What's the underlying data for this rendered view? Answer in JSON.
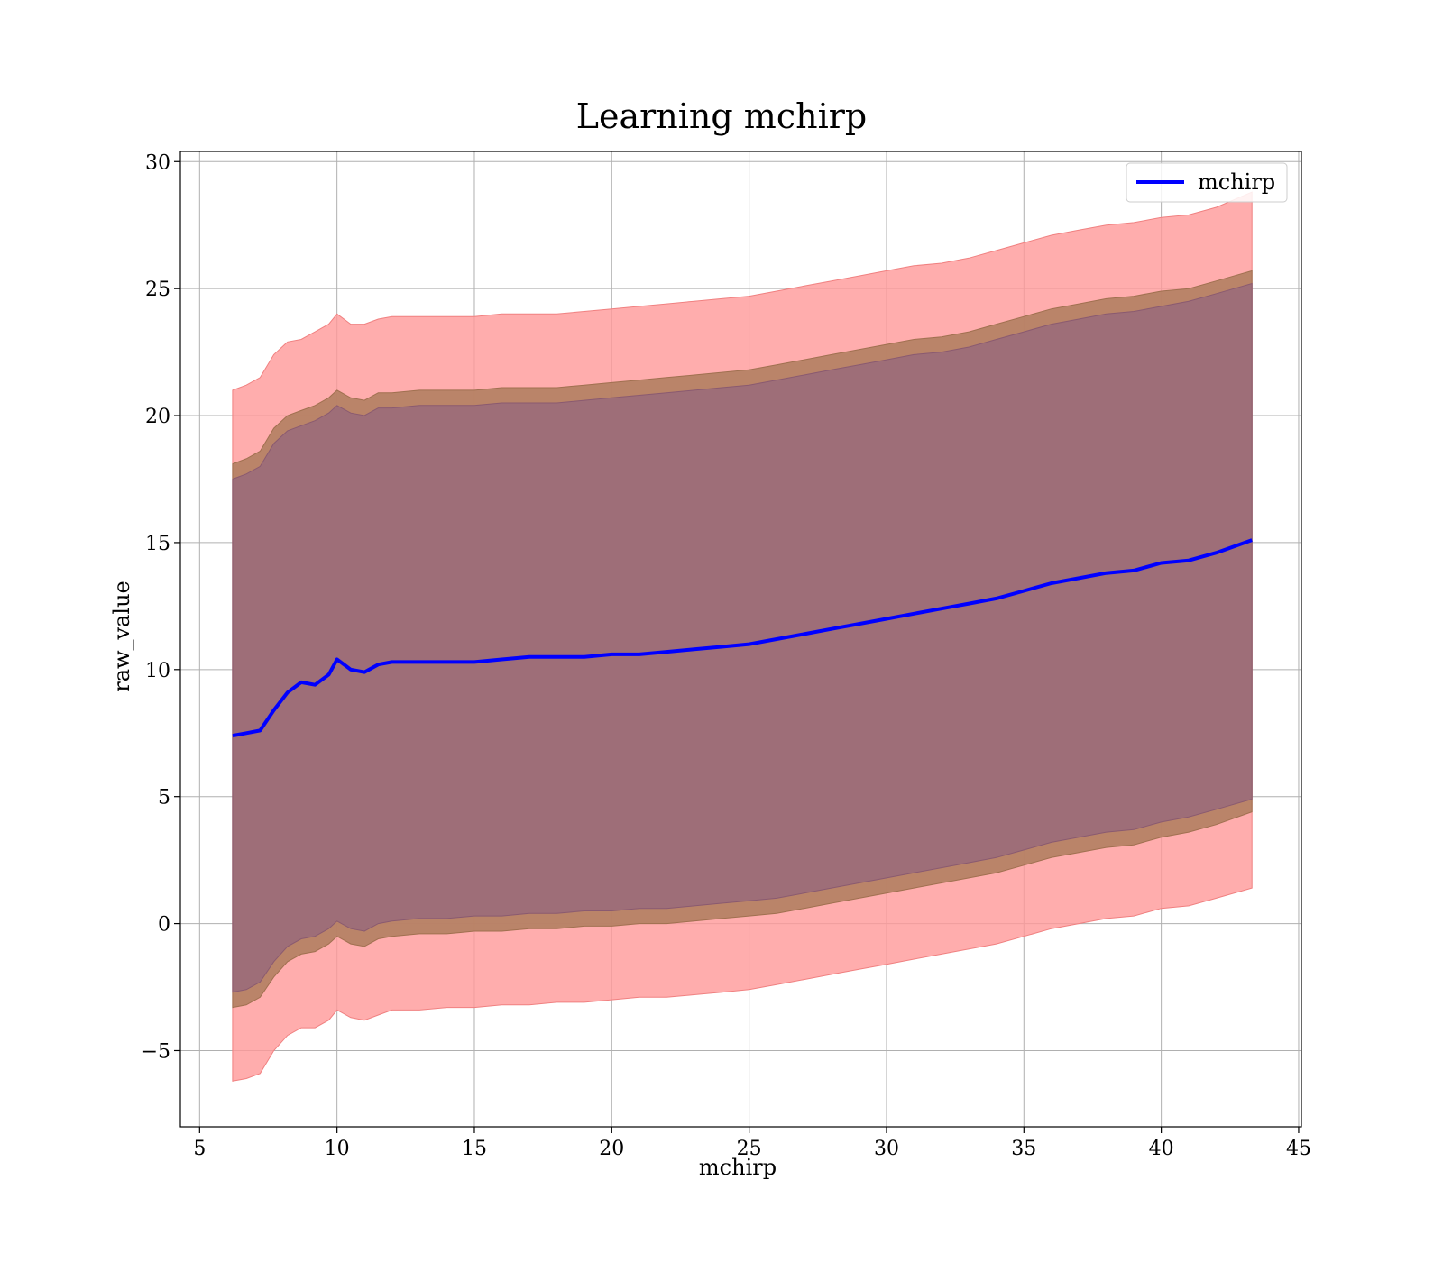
{
  "chart_data": {
    "type": "line",
    "title": "Learning mchirp",
    "xlabel": "mchirp",
    "ylabel": "raw_value",
    "xlim": [
      4.3,
      45.1
    ],
    "ylim": [
      -8.0,
      30.4
    ],
    "x_ticks": [
      5,
      10,
      15,
      20,
      25,
      30,
      35,
      40,
      45
    ],
    "y_ticks": [
      -5,
      0,
      5,
      10,
      15,
      20,
      25,
      30
    ],
    "x_tick_labels": [
      "5",
      "10",
      "15",
      "20",
      "25",
      "30",
      "35",
      "40",
      "45"
    ],
    "y_tick_labels": [
      "−5",
      "0",
      "5",
      "10",
      "15",
      "20",
      "25",
      "30"
    ],
    "grid": true,
    "legend_position": "top-right",
    "colors": {
      "line": "#0000ff",
      "outer_band": "#ff9999",
      "middle_band": "#b38062",
      "inner_band": "#9e6e78"
    },
    "series": [
      {
        "name": "mchirp",
        "x": [
          6.2,
          6.7,
          7.2,
          7.7,
          8.2,
          8.7,
          9.2,
          9.7,
          10.0,
          10.5,
          11.0,
          11.5,
          12.0,
          13,
          14,
          15,
          16,
          17,
          18,
          19,
          20,
          21,
          22,
          23,
          24,
          25,
          26,
          27,
          28,
          29,
          30,
          31,
          32,
          33,
          34,
          35,
          36,
          37,
          38,
          39,
          40,
          41,
          42,
          43.3
        ],
        "y": [
          7.4,
          7.5,
          7.6,
          8.4,
          9.1,
          9.5,
          9.4,
          9.8,
          10.4,
          10.0,
          9.9,
          10.2,
          10.3,
          10.3,
          10.3,
          10.3,
          10.4,
          10.5,
          10.5,
          10.5,
          10.6,
          10.6,
          10.7,
          10.8,
          10.9,
          11.0,
          11.2,
          11.4,
          11.6,
          11.8,
          12.0,
          12.2,
          12.4,
          12.6,
          12.8,
          13.1,
          13.4,
          13.6,
          13.8,
          13.9,
          14.2,
          14.3,
          14.6,
          15.1
        ]
      }
    ],
    "bands": {
      "outer": {
        "upper": [
          21.0,
          21.2,
          21.5,
          22.4,
          22.9,
          23.0,
          23.3,
          23.6,
          24.0,
          23.6,
          23.6,
          23.8,
          23.9,
          23.9,
          23.9,
          23.9,
          24.0,
          24.0,
          24.0,
          24.1,
          24.2,
          24.3,
          24.4,
          24.5,
          24.6,
          24.7,
          24.9,
          25.1,
          25.3,
          25.5,
          25.7,
          25.9,
          26.0,
          26.2,
          26.5,
          26.8,
          27.1,
          27.3,
          27.5,
          27.6,
          27.8,
          27.9,
          28.2,
          28.8
        ],
        "lower": [
          -6.2,
          -6.1,
          -5.9,
          -5.0,
          -4.4,
          -4.1,
          -4.1,
          -3.8,
          -3.4,
          -3.7,
          -3.8,
          -3.6,
          -3.4,
          -3.4,
          -3.3,
          -3.3,
          -3.2,
          -3.2,
          -3.1,
          -3.1,
          -3.0,
          -2.9,
          -2.9,
          -2.8,
          -2.7,
          -2.6,
          -2.4,
          -2.2,
          -2.0,
          -1.8,
          -1.6,
          -1.4,
          -1.2,
          -1.0,
          -0.8,
          -0.5,
          -0.2,
          0.0,
          0.2,
          0.3,
          0.6,
          0.7,
          1.0,
          1.4
        ]
      },
      "middle": {
        "upper": [
          18.1,
          18.3,
          18.6,
          19.5,
          20.0,
          20.2,
          20.4,
          20.7,
          21.0,
          20.7,
          20.6,
          20.9,
          20.9,
          21.0,
          21.0,
          21.0,
          21.1,
          21.1,
          21.1,
          21.2,
          21.3,
          21.4,
          21.5,
          21.6,
          21.7,
          21.8,
          22.0,
          22.2,
          22.4,
          22.6,
          22.8,
          23.0,
          23.1,
          23.3,
          23.6,
          23.9,
          24.2,
          24.4,
          24.6,
          24.7,
          24.9,
          25.0,
          25.3,
          25.7
        ],
        "lower": [
          -3.3,
          -3.2,
          -2.9,
          -2.1,
          -1.5,
          -1.2,
          -1.1,
          -0.8,
          -0.5,
          -0.8,
          -0.9,
          -0.6,
          -0.5,
          -0.4,
          -0.4,
          -0.3,
          -0.3,
          -0.2,
          -0.2,
          -0.1,
          -0.1,
          0.0,
          0.0,
          0.1,
          0.2,
          0.3,
          0.4,
          0.6,
          0.8,
          1.0,
          1.2,
          1.4,
          1.6,
          1.8,
          2.0,
          2.3,
          2.6,
          2.8,
          3.0,
          3.1,
          3.4,
          3.6,
          3.9,
          4.4
        ]
      },
      "inner": {
        "upper": [
          17.5,
          17.7,
          18.0,
          18.9,
          19.4,
          19.6,
          19.8,
          20.1,
          20.4,
          20.1,
          20.0,
          20.3,
          20.3,
          20.4,
          20.4,
          20.4,
          20.5,
          20.5,
          20.5,
          20.6,
          20.7,
          20.8,
          20.9,
          21.0,
          21.1,
          21.2,
          21.4,
          21.6,
          21.8,
          22.0,
          22.2,
          22.4,
          22.5,
          22.7,
          23.0,
          23.3,
          23.6,
          23.8,
          24.0,
          24.1,
          24.3,
          24.5,
          24.8,
          25.2
        ],
        "lower": [
          -2.7,
          -2.6,
          -2.3,
          -1.5,
          -0.9,
          -0.6,
          -0.5,
          -0.2,
          0.1,
          -0.2,
          -0.3,
          0.0,
          0.1,
          0.2,
          0.2,
          0.3,
          0.3,
          0.4,
          0.4,
          0.5,
          0.5,
          0.6,
          0.6,
          0.7,
          0.8,
          0.9,
          1.0,
          1.2,
          1.4,
          1.6,
          1.8,
          2.0,
          2.2,
          2.4,
          2.6,
          2.9,
          3.2,
          3.4,
          3.6,
          3.7,
          4.0,
          4.2,
          4.5,
          4.9
        ]
      }
    }
  }
}
